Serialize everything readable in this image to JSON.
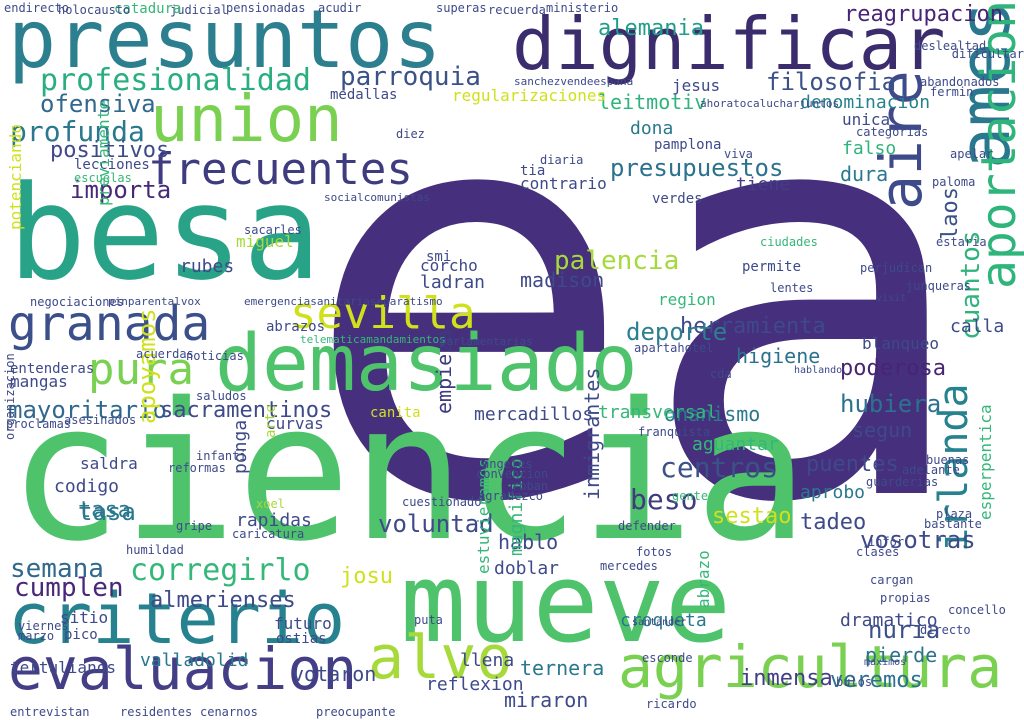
{
  "palette": {
    "purple": "#462f7c",
    "indigo": "#3b4f8a",
    "teal": "#26828e",
    "green": "#35b779",
    "lime": "#a6d93a",
    "yellow": "#d0e11c"
  },
  "words": [
    {
      "text": "ea",
      "color": "#462f7c"
    },
    {
      "text": "ciencia",
      "color": "#4ec36b"
    },
    {
      "text": "mueve",
      "color": "#4ec36b"
    },
    {
      "text": "demasiado",
      "color": "#4ec36b"
    },
    {
      "text": "besa",
      "color": "#29a387"
    },
    {
      "text": "presuntos",
      "color": "#2c7f8f"
    },
    {
      "text": "dignificar",
      "color": "#3b2c6e"
    },
    {
      "text": "union",
      "color": "#7ad151"
    },
    {
      "text": "criterio",
      "color": "#26828e"
    },
    {
      "text": "evaluacion",
      "color": "#433e85"
    },
    {
      "text": "agricultura",
      "color": "#7ad151"
    },
    {
      "text": "alvo",
      "color": "#a6d93a"
    },
    {
      "text": "granada",
      "color": "#3b4f8a"
    },
    {
      "text": "frecuentes",
      "color": "#3e3b7f"
    },
    {
      "text": "sevilla",
      "color": "#d0e11c"
    },
    {
      "text": "pura",
      "color": "#7ad151"
    },
    {
      "text": "ames",
      "color": "#29788e"
    },
    {
      "text": "aire",
      "color": "#3e4a89"
    },
    {
      "text": "aportacion",
      "color": "#2fb47c"
    },
    {
      "text": "profesionalidad",
      "color": "#29af7f"
    },
    {
      "text": "parroquia",
      "color": "#3b5288"
    },
    {
      "text": "filosofia",
      "color": "#3b5288"
    },
    {
      "text": "reagrupacion",
      "color": "#482475"
    },
    {
      "text": "alemania",
      "color": "#1f9e89"
    },
    {
      "text": "profunda",
      "color": "#2a788e"
    },
    {
      "text": "importa",
      "color": "#482878"
    },
    {
      "text": "positivos",
      "color": "#3e4a89"
    },
    {
      "text": "ofensiva",
      "color": "#31688e"
    },
    {
      "text": "palencia",
      "color": "#a6d93a"
    },
    {
      "text": "madison",
      "color": "#3e4a89"
    },
    {
      "text": "presupuestos",
      "color": "#2c728e"
    },
    {
      "text": "semana",
      "color": "#31688e"
    },
    {
      "text": "corregirlo",
      "color": "#35b779"
    },
    {
      "text": "cumplen",
      "color": "#482878"
    },
    {
      "text": "centros",
      "color": "#3b5288"
    },
    {
      "text": "beso",
      "color": "#3e3b7f"
    },
    {
      "text": "voluntad",
      "color": "#3e4a89"
    },
    {
      "text": "inmigrantes",
      "color": "#3e4a89"
    },
    {
      "text": "herramienta",
      "color": "#3e4a89"
    },
    {
      "text": "deporte",
      "color": "#2c7f8f"
    },
    {
      "text": "poderosa",
      "color": "#482475"
    },
    {
      "text": "hubiera",
      "color": "#2c728e"
    },
    {
      "text": "higiene",
      "color": "#2c728e"
    },
    {
      "text": "cuantos",
      "color": "#2fb47c"
    },
    {
      "text": "irlanda",
      "color": "#26828e"
    },
    {
      "text": "laos",
      "color": "#3b5288"
    },
    {
      "text": "vosotras",
      "color": "#3e4a89"
    },
    {
      "text": "nuria",
      "color": "#3b5288"
    },
    {
      "text": "veremos",
      "color": "#2c728e"
    },
    {
      "text": "inmensa",
      "color": "#433e85"
    },
    {
      "text": "mayoritario",
      "color": "#31688e"
    },
    {
      "text": "sacramentinos",
      "color": "#3e4a89"
    },
    {
      "text": "apoyamos",
      "color": "#d0e11c"
    },
    {
      "text": "tasa",
      "color": "#2a788e"
    },
    {
      "text": "almerienses",
      "color": "#3e4a89"
    },
    {
      "text": "josu",
      "color": "#d0e11c"
    },
    {
      "text": "valladolid",
      "color": "#29788e"
    },
    {
      "text": "ternera",
      "color": "#2a788e"
    },
    {
      "text": "miraron",
      "color": "#3e4a89"
    },
    {
      "text": "croqueta",
      "color": "#2a788e"
    },
    {
      "text": "dramatico",
      "color": "#3e4a89"
    },
    {
      "text": "pierde",
      "color": "#2c728e"
    },
    {
      "text": "sestao",
      "color": "#d0e11c"
    },
    {
      "text": "tadeo",
      "color": "#3e4a89"
    },
    {
      "text": "puentes",
      "color": "#3e4a89"
    },
    {
      "text": "aprobo",
      "color": "#2a788e"
    },
    {
      "text": "empieza",
      "color": "#3e3b7f"
    },
    {
      "text": "mercadillos",
      "color": "#3e4a89"
    },
    {
      "text": "onanismo",
      "color": "#2a788e"
    },
    {
      "text": "segun",
      "color": "#3e4a89"
    },
    {
      "text": "dona",
      "color": "#2a788e"
    },
    {
      "text": "leitmotiv",
      "color": "#2fb47c"
    },
    {
      "text": "denominacion",
      "color": "#26828e"
    },
    {
      "text": "jesus",
      "color": "#3e4a89"
    },
    {
      "text": "tiene",
      "color": "#433e85"
    },
    {
      "text": "contrario",
      "color": "#3e4a89"
    },
    {
      "text": "dura",
      "color": "#2a788e"
    },
    {
      "text": "falso",
      "color": "#2fb47c"
    },
    {
      "text": "unica",
      "color": "#3e4a89"
    },
    {
      "text": "rubes",
      "color": "#3e4a89"
    },
    {
      "text": "ladran",
      "color": "#3e4a89"
    },
    {
      "text": "tasa",
      "color": "#2a788e"
    },
    {
      "text": "hablo",
      "color": "#3e4a89"
    },
    {
      "text": "doblar",
      "color": "#3e4a89"
    },
    {
      "text": "llena",
      "color": "#3e4a89"
    },
    {
      "text": "reflexion",
      "color": "#3e4a89"
    },
    {
      "text": "calla",
      "color": "#3e4a89"
    },
    {
      "text": "regularizaciones",
      "color": "#d0e11c"
    },
    {
      "text": "medallas",
      "color": "#3e4a89"
    },
    {
      "text": "tertulianos",
      "color": "#3e4a89"
    },
    {
      "text": "mangas",
      "color": "#3e4a89"
    },
    {
      "text": "potenciando",
      "color": "#d0e11c"
    },
    {
      "text": "negociaciones",
      "color": "#3e4a89"
    },
    {
      "text": "lecciones",
      "color": "#3e4a89"
    },
    {
      "text": "blanqueo",
      "color": "#3e4a89"
    },
    {
      "text": "permite",
      "color": "#3e4a89"
    },
    {
      "text": "region",
      "color": "#35b779"
    },
    {
      "text": "verdes",
      "color": "#3e4a89"
    },
    {
      "text": "corcho",
      "color": "#3e4a89"
    },
    {
      "text": "miguel",
      "color": "#a6d93a"
    },
    {
      "text": "entenderas",
      "color": "#3e4a89"
    },
    {
      "text": "previamente",
      "color": "#35b779"
    },
    {
      "text": "escuelas",
      "color": "#35b779"
    },
    {
      "text": "diaria",
      "color": "#3e4a89"
    },
    {
      "text": "pamplona",
      "color": "#3e4a89"
    },
    {
      "text": "viva",
      "color": "#3e4a89"
    },
    {
      "text": "categorias",
      "color": "#3e4a89"
    },
    {
      "text": "lentes",
      "color": "#3e4a89"
    },
    {
      "text": "transversal",
      "color": "#35b779"
    },
    {
      "text": "canita",
      "color": "#d0e11c"
    },
    {
      "text": "aguantar",
      "color": "#35b779"
    },
    {
      "text": "xoel",
      "color": "#a6d93a"
    },
    {
      "text": "rapidas",
      "color": "#3e4a89"
    },
    {
      "text": "ponga",
      "color": "#3e4a89"
    },
    {
      "text": "curvas",
      "color": "#3e4a89"
    },
    {
      "text": "codigo",
      "color": "#3e4a89"
    },
    {
      "text": "saldra",
      "color": "#3e4a89"
    },
    {
      "text": "abrazo",
      "color": "#35b779"
    },
    {
      "text": "magnifico",
      "color": "#35b779"
    },
    {
      "text": "estuvieramos",
      "color": "#35b779"
    },
    {
      "text": "arte",
      "color": "#a6d93a"
    },
    {
      "text": "votaron",
      "color": "#3e4a89"
    },
    {
      "text": "ostias",
      "color": "#3e4a89"
    },
    {
      "text": "futuro",
      "color": "#3e4a89"
    },
    {
      "text": "sitio",
      "color": "#3e4a89"
    },
    {
      "text": "pico",
      "color": "#3e4a89"
    },
    {
      "text": "entrevistan",
      "color": "#3e4a89"
    },
    {
      "text": "residentes",
      "color": "#3e4a89"
    },
    {
      "text": "cenarnos",
      "color": "#3e4a89"
    },
    {
      "text": "preocupante",
      "color": "#3e4a89"
    },
    {
      "text": "sacarles",
      "color": "#3e4a89"
    },
    {
      "text": "abrazos",
      "color": "#3e4a89"
    },
    {
      "text": "apartahotel",
      "color": "#3e4a89"
    },
    {
      "text": "hablando",
      "color": "#3e4a89"
    },
    {
      "text": "ciudades",
      "color": "#35b779"
    },
    {
      "text": "esperpentica",
      "color": "#35b779"
    },
    {
      "text": "roban",
      "color": "#3e4a89"
    },
    {
      "text": "mercedes",
      "color": "#3e4a89"
    },
    {
      "text": "ministerio",
      "color": "#3e4a89"
    },
    {
      "text": "recuerda",
      "color": "#3e4a89"
    },
    {
      "text": "superas",
      "color": "#3e4a89"
    },
    {
      "text": "judicial",
      "color": "#3e4a89"
    },
    {
      "text": "pensionadas",
      "color": "#3e4a89"
    },
    {
      "text": "acudir",
      "color": "#3e4a89"
    },
    {
      "text": "catadura",
      "color": "#35b779"
    },
    {
      "text": "holocausto",
      "color": "#3e4a89"
    },
    {
      "text": "endirecto",
      "color": "#3e4a89"
    },
    {
      "text": "dificultar",
      "color": "#3e4a89"
    },
    {
      "text": "deslealtad",
      "color": "#3e4a89"
    },
    {
      "text": "abandonados",
      "color": "#3e4a89"
    },
    {
      "text": "fermin",
      "color": "#3e4a89"
    },
    {
      "text": "apelar",
      "color": "#3e4a89"
    },
    {
      "text": "paloma",
      "color": "#3e4a89"
    },
    {
      "text": "estaria",
      "color": "#3e4a89"
    },
    {
      "text": "perjudican",
      "color": "#3e4a89"
    },
    {
      "text": "junqueras",
      "color": "#3e4a89"
    },
    {
      "text": "clases",
      "color": "#3e4a89"
    },
    {
      "text": "cargan",
      "color": "#3e4a89"
    },
    {
      "text": "buenas",
      "color": "#3e4a89"
    },
    {
      "text": "plaza",
      "color": "#3e4a89"
    },
    {
      "text": "bastante",
      "color": "#3e4a89"
    },
    {
      "text": "concello",
      "color": "#3e4a89"
    },
    {
      "text": "directo",
      "color": "#3e4a89"
    },
    {
      "text": "maximos",
      "color": "#3e4a89"
    },
    {
      "text": "propias",
      "color": "#3e4a89"
    },
    {
      "text": "adelante",
      "color": "#3e4a89"
    },
    {
      "text": "guarderias",
      "color": "#3e4a89"
    },
    {
      "text": "franquista",
      "color": "#3e4a89"
    },
    {
      "text": "bulos",
      "color": "#3e4a89"
    },
    {
      "text": "ricardo",
      "color": "#3e4a89"
    },
    {
      "text": "esconde",
      "color": "#3e4a89"
    },
    {
      "text": "fotos",
      "color": "#3e4a89"
    },
    {
      "text": "defender",
      "color": "#3e4a89"
    },
    {
      "text": "gente",
      "color": "#35b779"
    },
    {
      "text": "puta",
      "color": "#3e4a89"
    },
    {
      "text": "santander",
      "color": "#3e4a89"
    },
    {
      "text": "marzo",
      "color": "#3e4a89"
    },
    {
      "text": "viernes",
      "color": "#3e4a89"
    },
    {
      "text": "cuestionado",
      "color": "#3e4a89"
    },
    {
      "text": "convencion",
      "color": "#3e4a89"
    },
    {
      "text": "angeles",
      "color": "#3e4a89"
    },
    {
      "text": "agradezco",
      "color": "#3e4a89"
    },
    {
      "text": "gripe",
      "color": "#3e4a89"
    },
    {
      "text": "caricatura",
      "color": "#3e4a89"
    },
    {
      "text": "humildad",
      "color": "#3e4a89"
    },
    {
      "text": "infanti",
      "color": "#3e4a89"
    },
    {
      "text": "reformas",
      "color": "#3e4a89"
    },
    {
      "text": "asesinados",
      "color": "#3e4a89"
    },
    {
      "text": "proclamas",
      "color": "#3e4a89"
    },
    {
      "text": "saludos",
      "color": "#3e4a89"
    },
    {
      "text": "noticias",
      "color": "#3e4a89"
    },
    {
      "text": "acuerdas",
      "color": "#3e4a89"
    },
    {
      "text": "telematicamandamientos",
      "color": "#35b779"
    },
    {
      "text": "parlamentarias",
      "color": "#3e4a89"
    },
    {
      "text": "emergenciasanitariaseparatismo",
      "color": "#3e4a89"
    },
    {
      "text": "pinparentalvox",
      "color": "#3e4a89"
    },
    {
      "text": "sanchezvendeespana",
      "color": "#3e4a89"
    },
    {
      "text": "ahoratocalucharjuntos",
      "color": "#3e4a89"
    },
    {
      "text": "socialcomunistas",
      "color": "#3e4a89"
    },
    {
      "text": "organizacion",
      "color": "#3e4a89"
    },
    {
      "text": "diez",
      "color": "#3e4a89"
    },
    {
      "text": "visit",
      "color": "#3e4a89"
    },
    {
      "text": "smi",
      "color": "#3e4a89"
    },
    {
      "text": "cda",
      "color": "#3e4a89"
    },
    {
      "text": "tia",
      "color": "#3e4a89"
    },
    {
      "text": "infor",
      "color": "#3e4a89"
    }
  ]
}
